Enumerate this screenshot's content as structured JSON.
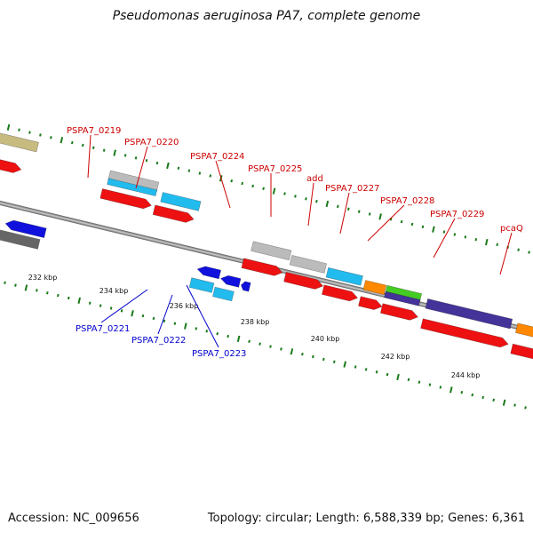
{
  "header": {
    "title": "Pseudomonas aeruginosa PA7, complete genome"
  },
  "footer": {
    "accession": "Accession: NC_009656",
    "summary": "Topology: circular; Length: 6,588,339 bp; Genes: 6,361"
  },
  "colors": {
    "forward_label": "#cc0000",
    "reverse_label": "#0000cc",
    "tick": "#1a7a1a",
    "backbone": "#888888"
  },
  "ruler": {
    "ticks": [
      "232 kbp",
      "234 kbp",
      "236 kbp",
      "238 kbp",
      "240 kbp",
      "242 kbp",
      "244 kbp"
    ]
  },
  "forward_labels": [
    "PSPA7_0219",
    "PSPA7_0220",
    "PSPA7_0224",
    "PSPA7_0225",
    "add",
    "PSPA7_0227",
    "PSPA7_0228",
    "PSPA7_0229",
    "pcaQ"
  ],
  "reverse_labels": [
    "PSPA7_0221",
    "PSPA7_0222",
    "PSPA7_0223"
  ],
  "feature_colors": {
    "red": "#ee1111",
    "gray": "#bbbbbb",
    "cyan": "#22bbee",
    "orange": "#ff8800",
    "green": "#44cc22",
    "purple": "#443399",
    "navy": "#000066",
    "blue": "#1111dd",
    "darkgray": "#666666",
    "khaki": "#c8bb80"
  }
}
